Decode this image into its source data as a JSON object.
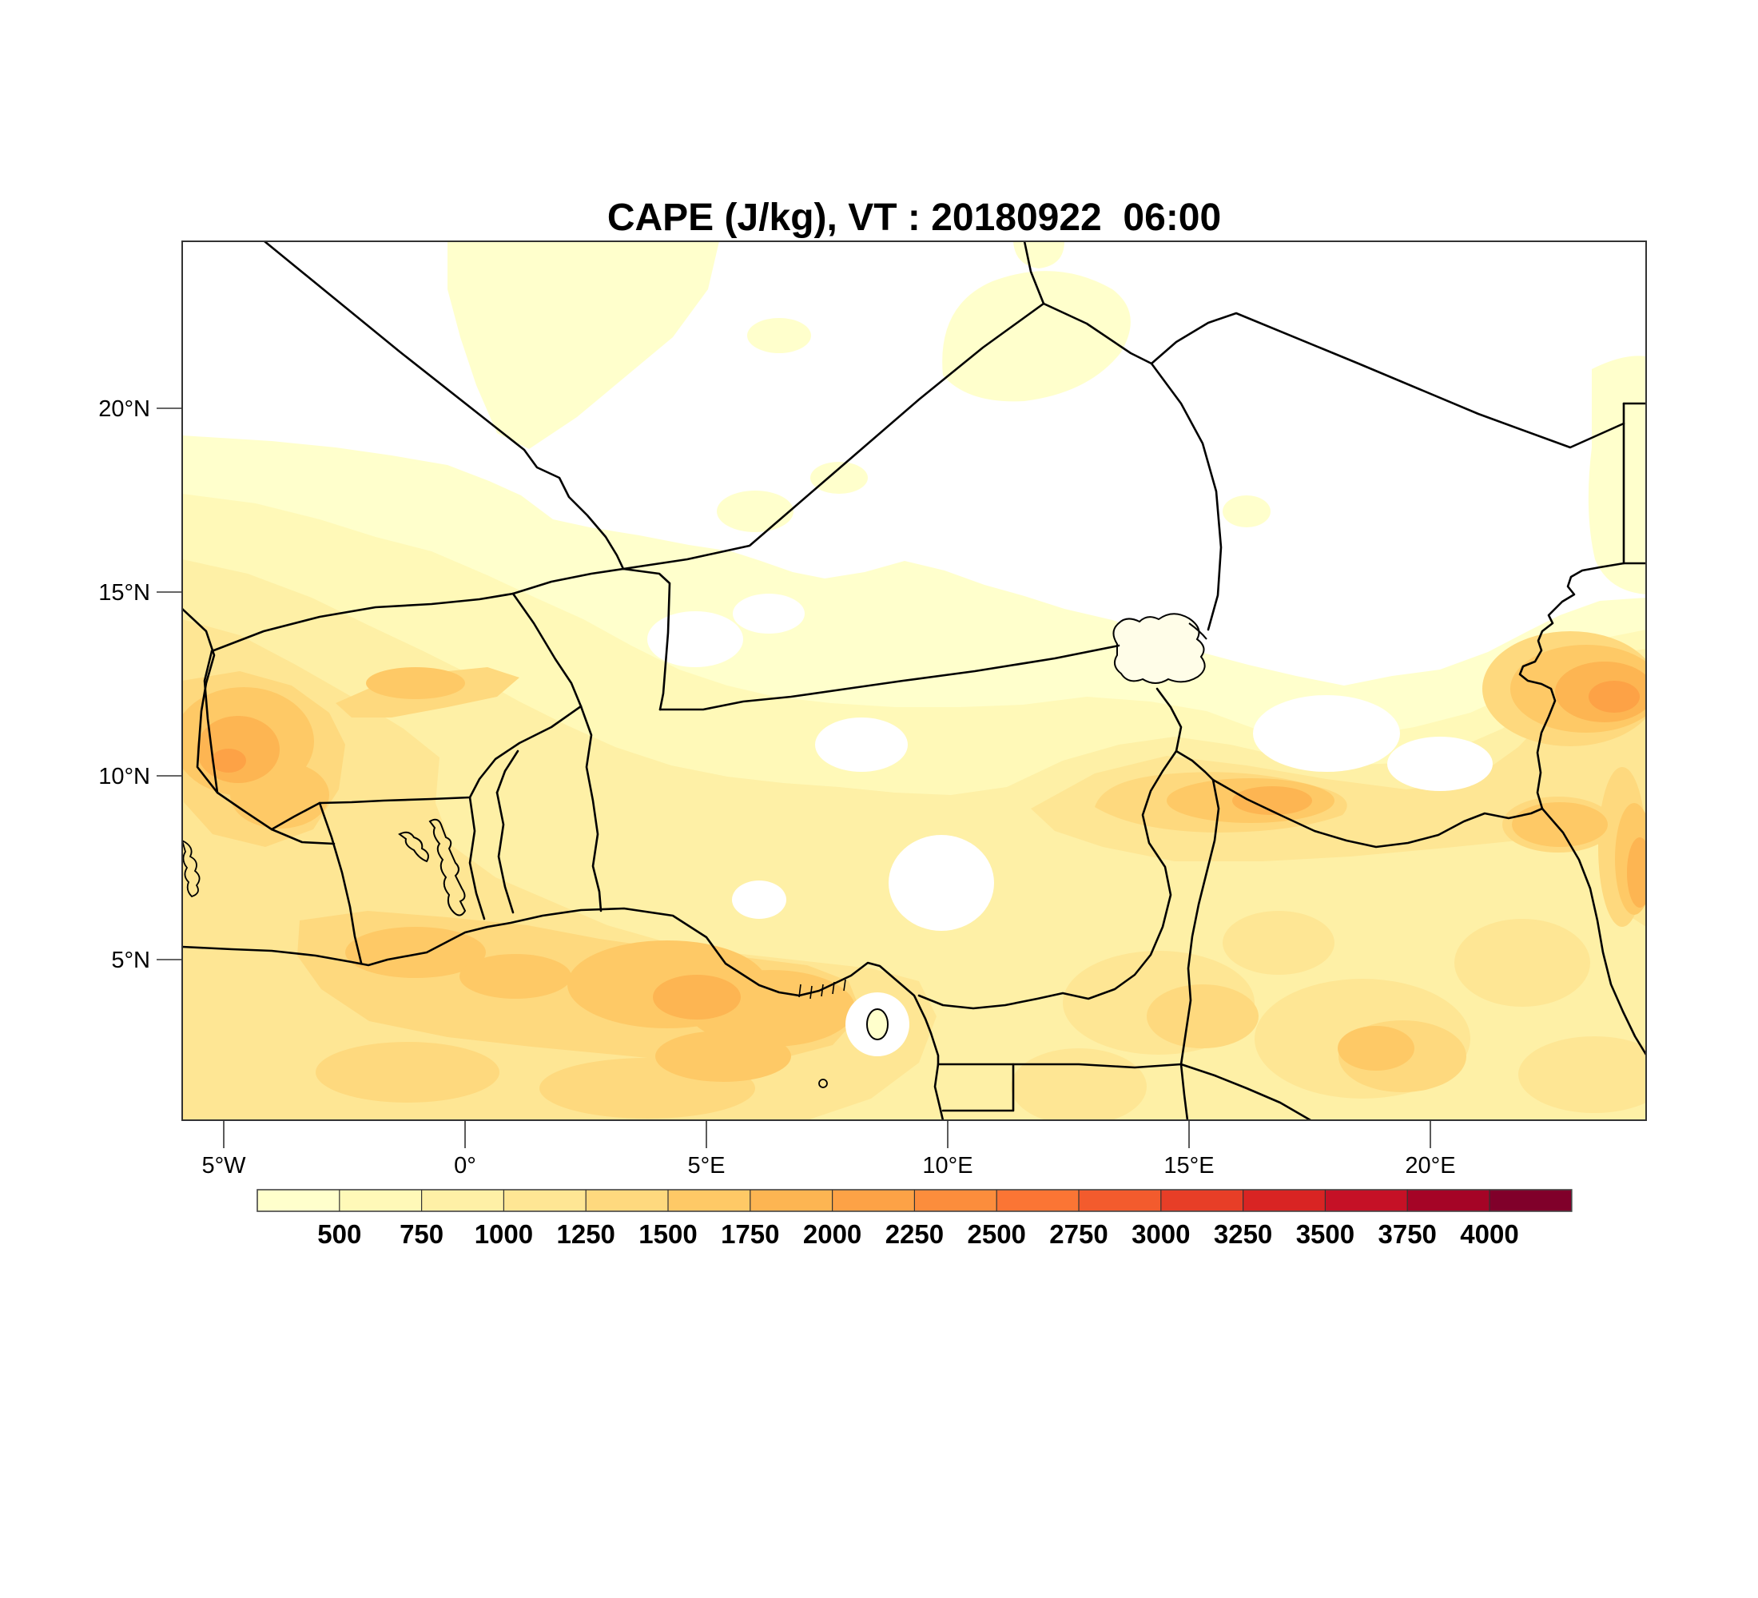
{
  "title": "CAPE (J/kg), VT : 20180922  06:00",
  "map": {
    "lat_tick_labels": [
      "20°N",
      "15°N",
      "10°N",
      "5°N"
    ],
    "lon_tick_labels": [
      "5°W",
      "0°",
      "5°E",
      "10°E",
      "15°E",
      "20°E"
    ]
  },
  "colorbar": {
    "labels": [
      "500",
      "750",
      "1000",
      "1250",
      "1500",
      "1750",
      "2000",
      "2250",
      "2500",
      "2750",
      "3000",
      "3250",
      "3500",
      "3750",
      "4000"
    ],
    "colors": [
      "#FFFFCC",
      "#FFF9B8",
      "#FEF0A6",
      "#FEE694",
      "#FED97E",
      "#FEC966",
      "#FDB552",
      "#FDA246",
      "#FC8D3C",
      "#FB7534",
      "#F35B2D",
      "#E73E27",
      "#D92423",
      "#C51126",
      "#A50426",
      "#80002A"
    ]
  },
  "chart_data": {
    "type": "heatmap",
    "subtype": "filled-contour-geographic-map",
    "variable": "CAPE",
    "units": "J/kg",
    "valid_time_label": "VT : 20180922  06:00",
    "title": "CAPE (J/kg), VT : 20180922  06:00",
    "x": {
      "label_type": "longitude",
      "ticks": [
        "5°W",
        "0°",
        "5°E",
        "10°E",
        "15°E",
        "20°E"
      ],
      "range_deg": [
        -5.9,
        24.5
      ]
    },
    "y": {
      "label_type": "latitude",
      "ticks": [
        "5°N",
        "10°N",
        "15°N",
        "20°N"
      ],
      "range_deg": [
        0.6,
        24.5
      ]
    },
    "contour_levels": [
      250,
      500,
      750,
      1000,
      1250,
      1500,
      1750,
      2000,
      2250,
      2500,
      2750,
      3000,
      3250,
      3500,
      3750,
      4000,
      4250
    ],
    "palette_hex": [
      "#FFFFCC",
      "#FFF9B8",
      "#FEF0A6",
      "#FEE694",
      "#FED97E",
      "#FEC966",
      "#FDB552",
      "#FDA246",
      "#FC8D3C",
      "#FB7534",
      "#F35B2D",
      "#E73E27",
      "#D92423",
      "#C51126",
      "#A50426",
      "#80002A"
    ],
    "legend_position": "bottom",
    "grid": false,
    "region": "West and Central Africa (Gulf of Guinea to Sahara), country borders and coastline overlaid",
    "observed_features": [
      {
        "name": "sahara-minimum",
        "approx_lon_lat": [
          8,
          20
        ],
        "cape_j_per_kg": "< 250 (white)"
      },
      {
        "name": "west-maximum",
        "approx_lon_lat": [
          -4.7,
          10.5
        ],
        "cape_j_per_kg": "1750-2250"
      },
      {
        "name": "far-east-maximum-chad-sudan-border",
        "approx_lon_lat": [
          23.5,
          12.3
        ],
        "cape_j_per_kg": "2000-2250"
      },
      {
        "name": "gulf-of-guinea-coastal-band",
        "approx_lon_lat": [
          3,
          5
        ],
        "cape_j_per_kg": "1250-1750"
      },
      {
        "name": "central-sahel-belt",
        "approx_lon_lat": [
          12,
          9
        ],
        "cape_j_per_kg": "750-1500"
      },
      {
        "name": "cameroon-highlands-minimum",
        "approx_lon_lat": [
          9.8,
          7.1
        ],
        "cape_j_per_kg": "< 250 (white)"
      }
    ]
  }
}
